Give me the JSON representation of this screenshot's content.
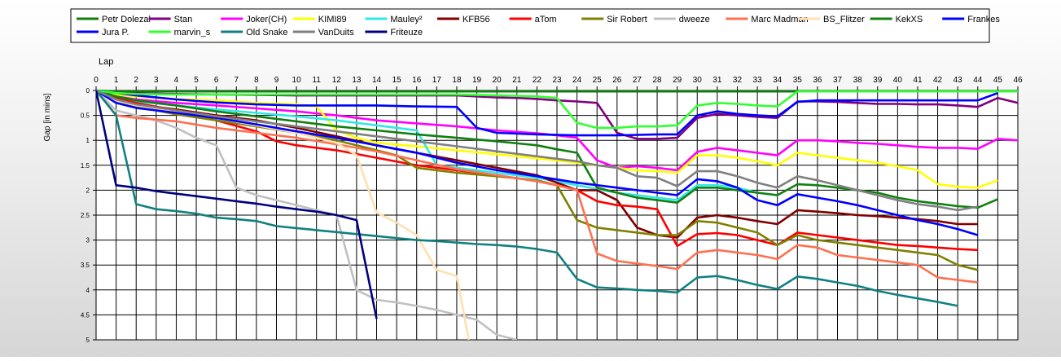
{
  "chart_data": {
    "type": "line",
    "title": "",
    "xlabel": "Lap",
    "ylabel": "Gap [in mins]",
    "xlim": [
      0,
      46
    ],
    "ylim": [
      0,
      5
    ],
    "y_inverted": true,
    "x_ticks": [
      0,
      1,
      2,
      3,
      4,
      5,
      6,
      7,
      8,
      9,
      10,
      11,
      12,
      13,
      14,
      15,
      16,
      17,
      18,
      19,
      20,
      21,
      22,
      23,
      24,
      25,
      26,
      27,
      28,
      29,
      30,
      31,
      32,
      33,
      34,
      35,
      36,
      37,
      38,
      39,
      40,
      41,
      42,
      43,
      44,
      45,
      46
    ],
    "y_ticks": [
      0,
      0.5,
      1,
      1.5,
      2,
      2.5,
      3,
      3.5,
      4,
      4.5,
      5
    ],
    "y_tick_labels": [
      "0",
      "0.5",
      "1",
      "1.5",
      "2",
      "2.5",
      "3",
      "3.5",
      "4",
      "4.5",
      "5"
    ],
    "grid": true,
    "legend_position": "top",
    "series": [
      {
        "name": "Petr Dolezal",
        "color": "#0e7f0e",
        "x": [
          0,
          1,
          2,
          4,
          6,
          8,
          10,
          12,
          14,
          16,
          18,
          20,
          22,
          24,
          26,
          28,
          30,
          32,
          34,
          35,
          36,
          38,
          40,
          42,
          44,
          45,
          46
        ],
        "y": [
          0,
          0.02,
          0.02,
          0.02,
          0.02,
          0.02,
          0.02,
          0.02,
          0.02,
          0.02,
          0.02,
          0.02,
          0.02,
          0.02,
          0.02,
          0.02,
          0.02,
          0.02,
          0.02,
          0.02,
          0.02,
          0.02,
          0.02,
          0.02,
          0.02,
          0.02,
          0.02
        ]
      },
      {
        "name": "Stan",
        "color": "#800080",
        "x": [
          0,
          1,
          2,
          4,
          6,
          8,
          10,
          12,
          14,
          16,
          18,
          19,
          20,
          21,
          22,
          23,
          24,
          25,
          26,
          27,
          28,
          29,
          30,
          31,
          32,
          33,
          34,
          35,
          36,
          37,
          38,
          39,
          40,
          41,
          42,
          43,
          44,
          45,
          46
        ],
        "y": [
          0,
          0.05,
          0.06,
          0.07,
          0.08,
          0.09,
          0.1,
          0.1,
          0.1,
          0.1,
          0.1,
          0.12,
          0.14,
          0.15,
          0.17,
          0.2,
          0.22,
          0.25,
          0.85,
          0.97,
          0.97,
          0.95,
          0.55,
          0.47,
          0.5,
          0.53,
          0.55,
          0.22,
          0.22,
          0.23,
          0.25,
          0.27,
          0.27,
          0.28,
          0.28,
          0.3,
          0.33,
          0.15,
          0.25
        ]
      },
      {
        "name": "Joker(CH)",
        "color": "#ff00ff",
        "x": [
          0,
          1,
          2,
          4,
          6,
          8,
          10,
          12,
          14,
          16,
          18,
          20,
          22,
          23,
          24,
          25,
          26,
          27,
          28,
          29,
          30,
          31,
          32,
          33,
          34,
          35,
          36,
          37,
          38,
          39,
          40,
          41,
          42,
          43,
          44,
          45,
          46
        ],
        "y": [
          0,
          0.12,
          0.18,
          0.25,
          0.3,
          0.36,
          0.42,
          0.5,
          0.6,
          0.66,
          0.72,
          0.8,
          0.86,
          0.9,
          0.95,
          1.4,
          1.55,
          1.52,
          1.55,
          1.6,
          1.23,
          1.15,
          1.2,
          1.25,
          1.3,
          1.0,
          1.0,
          1.02,
          1.05,
          1.07,
          1.1,
          1.13,
          1.15,
          1.15,
          1.17,
          0.97,
          1.0
        ]
      },
      {
        "name": "KIMI89",
        "color": "#ffff00",
        "x": [
          0,
          1,
          2,
          4,
          6,
          8,
          10,
          11,
          12,
          13,
          14,
          16,
          18,
          20,
          22,
          24,
          26,
          27,
          28,
          29,
          30,
          31,
          32,
          33,
          34,
          35,
          36,
          37,
          38,
          39,
          40,
          41,
          42,
          43,
          44,
          45
        ],
        "y": [
          0,
          0.08,
          0.12,
          0.17,
          0.2,
          0.25,
          0.28,
          0.32,
          0.8,
          0.95,
          1.05,
          1.12,
          1.2,
          1.28,
          1.36,
          1.45,
          1.55,
          1.6,
          1.62,
          1.65,
          1.3,
          1.3,
          1.35,
          1.42,
          1.5,
          1.25,
          1.3,
          1.35,
          1.4,
          1.45,
          1.52,
          1.6,
          1.88,
          1.93,
          1.95,
          1.8
        ]
      },
      {
        "name": "Mauley²",
        "color": "#30e8e8",
        "x": [
          0,
          1,
          2,
          4,
          6,
          8,
          10,
          12,
          14,
          16,
          17,
          18,
          20,
          22,
          24,
          26,
          28,
          29,
          30,
          31,
          32,
          33,
          34
        ],
        "y": [
          0,
          0.15,
          0.22,
          0.3,
          0.38,
          0.45,
          0.52,
          0.6,
          0.7,
          0.8,
          1.5,
          1.55,
          1.65,
          1.75,
          1.9,
          2.05,
          2.15,
          2.2,
          1.9,
          1.9,
          1.95,
          2.05,
          2.1
        ]
      },
      {
        "name": "KFB56",
        "color": "#800000",
        "x": [
          0,
          1,
          2,
          4,
          6,
          8,
          10,
          12,
          14,
          16,
          18,
          20,
          22,
          23,
          24,
          25,
          26,
          27,
          28,
          29,
          30,
          31,
          32,
          33,
          34,
          35,
          36,
          37,
          38,
          39,
          40,
          41,
          42,
          43,
          44
        ],
        "y": [
          0,
          0.2,
          0.28,
          0.38,
          0.5,
          0.6,
          0.75,
          0.92,
          1.1,
          1.25,
          1.4,
          1.55,
          1.7,
          1.85,
          2.0,
          2.0,
          2.2,
          2.75,
          2.9,
          2.95,
          2.55,
          2.5,
          2.55,
          2.62,
          2.68,
          2.4,
          2.43,
          2.46,
          2.5,
          2.52,
          2.55,
          2.58,
          2.62,
          2.68,
          2.68
        ]
      },
      {
        "name": "aTom",
        "color": "#ff0000",
        "x": [
          0,
          1,
          2,
          4,
          6,
          8,
          9,
          10,
          12,
          14,
          16,
          18,
          20,
          22,
          23,
          24,
          25,
          26,
          27,
          28,
          29,
          30,
          31,
          32,
          33,
          34,
          35,
          36,
          37,
          38,
          39,
          40,
          41,
          42,
          43,
          44
        ],
        "y": [
          0,
          0.15,
          0.25,
          0.4,
          0.6,
          0.82,
          1.02,
          1.1,
          1.2,
          1.35,
          1.5,
          1.6,
          1.7,
          1.82,
          1.9,
          2.0,
          2.22,
          2.3,
          2.33,
          2.38,
          3.12,
          2.88,
          2.86,
          2.9,
          3.0,
          3.1,
          2.85,
          2.9,
          2.95,
          3.0,
          3.05,
          3.1,
          3.12,
          3.15,
          3.18,
          3.2
        ]
      },
      {
        "name": "Sir Robert",
        "color": "#808000",
        "x": [
          0,
          1,
          2,
          4,
          6,
          8,
          10,
          12,
          14,
          15,
          16,
          18,
          20,
          22,
          23,
          24,
          25,
          26,
          27,
          28,
          29,
          30,
          31,
          32,
          33,
          34,
          35,
          36,
          37,
          38,
          39,
          40,
          41,
          42,
          43,
          44
        ],
        "y": [
          0,
          0.2,
          0.32,
          0.48,
          0.6,
          0.72,
          0.85,
          1.0,
          1.2,
          1.3,
          1.55,
          1.65,
          1.72,
          1.8,
          1.9,
          2.6,
          2.75,
          2.8,
          2.85,
          2.9,
          2.9,
          2.62,
          2.65,
          2.75,
          2.85,
          3.1,
          2.9,
          3.0,
          3.05,
          3.1,
          3.15,
          3.2,
          3.25,
          3.3,
          3.5,
          3.6
        ]
      },
      {
        "name": "dweeze",
        "color": "#c0c0c0",
        "x": [
          0,
          1,
          2,
          3,
          4,
          5,
          6,
          7,
          8,
          9,
          10,
          11,
          12,
          13,
          14,
          15,
          16,
          17,
          18,
          19,
          20,
          21
        ],
        "y": [
          0,
          0.4,
          0.5,
          0.6,
          0.75,
          0.95,
          1.1,
          1.95,
          2.1,
          2.2,
          2.3,
          2.4,
          2.5,
          4.0,
          4.2,
          4.25,
          4.32,
          4.4,
          4.5,
          4.6,
          4.9,
          5.0
        ]
      },
      {
        "name": "Marc Madman",
        "color": "#ff7050",
        "x": [
          0,
          1,
          2,
          4,
          6,
          8,
          10,
          12,
          14,
          16,
          18,
          20,
          22,
          23,
          24,
          25,
          26,
          27,
          28,
          29,
          30,
          31,
          32,
          33,
          34,
          35,
          36,
          37,
          38,
          39,
          40,
          41,
          42,
          43,
          44
        ],
        "y": [
          0,
          0.5,
          0.55,
          0.62,
          0.75,
          0.85,
          0.95,
          1.08,
          1.22,
          1.4,
          1.58,
          1.7,
          1.82,
          1.9,
          2.0,
          3.27,
          3.42,
          3.47,
          3.52,
          3.58,
          3.25,
          3.2,
          3.25,
          3.3,
          3.38,
          3.1,
          3.15,
          3.3,
          3.35,
          3.4,
          3.45,
          3.5,
          3.75,
          3.8,
          3.85
        ]
      },
      {
        "name": "BS_Flitzer",
        "color": "#ffe0b0",
        "x": [
          0,
          1,
          2,
          4,
          6,
          8,
          10,
          12,
          13,
          14,
          15,
          16,
          17,
          18,
          18.6
        ],
        "y": [
          0,
          0.2,
          0.3,
          0.42,
          0.55,
          0.7,
          0.85,
          1.05,
          1.3,
          2.45,
          2.65,
          2.9,
          3.6,
          3.72,
          5.0
        ]
      },
      {
        "name": "KekXS",
        "color": "#108010",
        "x": [
          0,
          1,
          2,
          4,
          6,
          8,
          10,
          12,
          14,
          16,
          18,
          20,
          22,
          23,
          24,
          25,
          26,
          27,
          28,
          29,
          30,
          31,
          32,
          33,
          34,
          35,
          36,
          37,
          38,
          39,
          40,
          41,
          42,
          43,
          44,
          45
        ],
        "y": [
          0,
          0.12,
          0.2,
          0.3,
          0.42,
          0.52,
          0.62,
          0.72,
          0.8,
          0.88,
          0.95,
          1.02,
          1.1,
          1.18,
          1.25,
          1.95,
          2.05,
          2.15,
          2.2,
          2.25,
          1.95,
          1.95,
          2.0,
          2.05,
          2.1,
          1.88,
          1.9,
          1.95,
          2.0,
          2.05,
          2.15,
          2.22,
          2.27,
          2.32,
          2.35,
          2.18
        ]
      },
      {
        "name": "Frankes",
        "color": "#0000ff",
        "x": [
          0,
          1,
          2,
          4,
          6,
          8,
          10,
          12,
          13,
          14,
          16,
          18,
          19,
          20,
          22,
          24,
          26,
          28,
          29,
          30,
          31,
          32,
          33,
          34,
          35,
          36,
          38,
          40,
          42,
          44,
          45
        ],
        "y": [
          0,
          0.05,
          0.1,
          0.18,
          0.24,
          0.28,
          0.3,
          0.3,
          0.3,
          0.3,
          0.32,
          0.33,
          0.75,
          0.85,
          0.88,
          0.9,
          0.9,
          0.88,
          0.88,
          0.5,
          0.42,
          0.47,
          0.5,
          0.52,
          0.23,
          0.2,
          0.2,
          0.2,
          0.2,
          0.2,
          0.05
        ]
      },
      {
        "name": "Jura P.",
        "color": "#0000ff",
        "x": [
          0,
          1,
          2,
          4,
          6,
          8,
          10,
          12,
          14,
          16,
          18,
          20,
          22,
          24,
          26,
          28,
          29,
          30,
          31,
          32,
          33,
          34,
          35,
          36,
          37,
          38,
          39,
          40,
          41,
          42,
          43,
          44
        ],
        "y": [
          0,
          0.25,
          0.35,
          0.45,
          0.55,
          0.68,
          0.82,
          0.95,
          1.1,
          1.25,
          1.45,
          1.6,
          1.72,
          1.85,
          1.95,
          2.05,
          2.1,
          1.78,
          1.82,
          1.95,
          2.2,
          2.3,
          2.08,
          2.15,
          2.22,
          2.3,
          2.4,
          2.5,
          2.6,
          2.68,
          2.78,
          2.9
        ]
      },
      {
        "name": "marvin_s",
        "color": "#30ff30",
        "x": [
          0,
          1,
          2,
          4,
          6,
          8,
          10,
          12,
          14,
          16,
          18,
          20,
          22,
          23,
          24,
          25,
          26,
          27,
          28,
          29,
          30,
          31,
          32,
          33,
          34,
          35,
          36,
          38,
          40,
          42,
          44,
          45,
          46
        ],
        "y": [
          0,
          0.05,
          0.07,
          0.08,
          0.08,
          0.08,
          0.08,
          0.08,
          0.08,
          0.08,
          0.08,
          0.1,
          0.12,
          0.15,
          0.65,
          0.75,
          0.75,
          0.72,
          0.72,
          0.7,
          0.3,
          0.25,
          0.27,
          0.3,
          0.32,
          0.02,
          0.02,
          0.02,
          0.02,
          0.02,
          0.02,
          0.02,
          0.02
        ]
      },
      {
        "name": "Old Snake",
        "color": "#108080",
        "x": [
          0,
          1,
          2,
          3,
          4,
          5,
          6,
          7,
          8,
          9,
          10,
          11,
          12,
          13,
          14,
          15,
          16,
          17,
          18,
          19,
          20,
          21,
          22,
          23,
          24,
          25,
          26,
          27,
          28,
          29,
          30,
          31,
          32,
          33,
          34,
          35,
          36,
          37,
          38,
          39,
          40,
          41,
          42,
          43
        ],
        "y": [
          0,
          0.5,
          2.28,
          2.38,
          2.42,
          2.47,
          2.55,
          2.58,
          2.62,
          2.72,
          2.76,
          2.8,
          2.84,
          2.88,
          2.92,
          2.96,
          3.0,
          3.02,
          3.05,
          3.08,
          3.1,
          3.13,
          3.18,
          3.25,
          3.78,
          3.95,
          3.97,
          4.0,
          4.02,
          4.05,
          3.75,
          3.72,
          3.8,
          3.9,
          3.98,
          3.73,
          3.78,
          3.85,
          3.92,
          4.02,
          4.1,
          4.17,
          4.24,
          4.32
        ]
      },
      {
        "name": "VanDuits",
        "color": "#808080",
        "x": [
          0,
          1,
          2,
          4,
          6,
          8,
          10,
          12,
          14,
          16,
          18,
          20,
          22,
          24,
          25,
          26,
          27,
          28,
          29,
          30,
          31,
          32,
          33,
          34,
          35,
          36,
          37,
          38,
          39,
          40,
          41,
          42,
          43,
          44
        ],
        "y": [
          0,
          0.18,
          0.28,
          0.4,
          0.52,
          0.62,
          0.72,
          0.82,
          0.92,
          1.02,
          1.12,
          1.22,
          1.32,
          1.42,
          1.5,
          1.55,
          1.72,
          1.75,
          1.92,
          1.62,
          1.62,
          1.72,
          1.85,
          1.95,
          1.72,
          1.8,
          1.9,
          2.0,
          2.1,
          2.2,
          2.28,
          2.33,
          2.4,
          2.33
        ]
      },
      {
        "name": "Friteuze",
        "color": "#000080",
        "x": [
          0,
          1,
          2,
          3,
          4,
          5,
          6,
          7,
          8,
          9,
          10,
          11,
          12,
          13,
          14
        ],
        "y": [
          0,
          1.9,
          1.95,
          2.02,
          2.07,
          2.12,
          2.17,
          2.22,
          2.27,
          2.33,
          2.38,
          2.43,
          2.5,
          2.6,
          4.58
        ]
      }
    ]
  }
}
